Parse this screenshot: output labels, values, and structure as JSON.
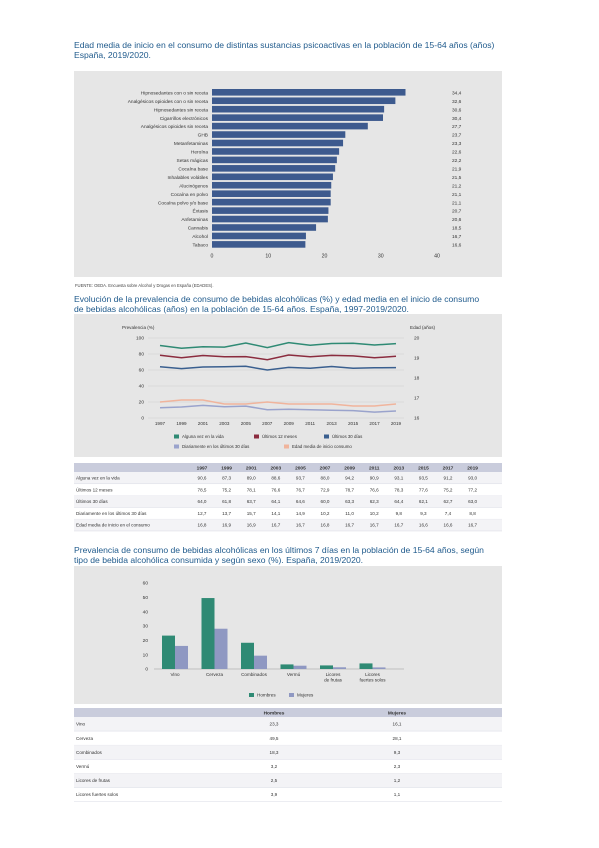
{
  "colors": {
    "title": "#1f5a8c",
    "bar1": "#3d5a8e",
    "green": "#2f8a74",
    "red": "#8b2c3f",
    "blue": "#3a5f8f",
    "lavender": "#9aa3cc",
    "salmon": "#f0b49c",
    "hombres": "#2f8a74",
    "mujeres": "#8f98c2",
    "panel": "#e6e6e6",
    "tableHeader": "#c9ccdc"
  },
  "chart1": {
    "title_line1": "Edad media de inicio en el consumo de distintas sustancias psicoactivas en la población de 15-64 años (años)",
    "title_line2": "España, 2019/2020.",
    "source": "FUENTE: OEDA. Encuesta sobre Alcohol y Drogas en España (EDADES).",
    "chart_data": {
      "type": "bar",
      "orientation": "horizontal",
      "categories": [
        "Hipnosedantes con o sin receta",
        "Analgésicos opioides con o sin receta",
        "Hipnosedantes sin receta",
        "Cigarrillos electrónicos",
        "Analgésicos opioides sin receta",
        "GHB",
        "Metanfetaminas",
        "Heroína",
        "Setas mágicas",
        "Cocaína base",
        "Inhalables volátiles",
        "Alucinógenos",
        "Cocaína en polvo",
        "Cocaína polvo y/o base",
        "Éxtasis",
        "Anfetaminas",
        "Cannabis",
        "Alcohol",
        "Tabaco"
      ],
      "values": [
        34.4,
        32.6,
        30.6,
        30.4,
        27.7,
        23.7,
        23.3,
        22.6,
        22.2,
        21.9,
        21.5,
        21.2,
        21.1,
        21.1,
        20.7,
        20.6,
        18.5,
        16.7,
        16.6
      ],
      "value_labels": [
        "34,4",
        "32,6",
        "30,6",
        "30,4",
        "27,7",
        "23,7",
        "23,3",
        "22,6",
        "22,2",
        "21,9",
        "21,5",
        "21,2",
        "21,1",
        "21,1",
        "20,7",
        "20,6",
        "18,5",
        "16,7",
        "16,6"
      ],
      "xlim": [
        0,
        40
      ],
      "xticks": [
        "0",
        "10",
        "20",
        "30",
        "40"
      ]
    }
  },
  "chart2": {
    "title_line1": "Evolución de la prevalencia de consumo de bebidas alcohólicas (%) y edad media en el inicio de consumo",
    "title_line2": "de bebidas alcohólicas (años) en la población de 15-64 años. España, 1997-2019/2020.",
    "chart_data": {
      "type": "line",
      "x": [
        "1997",
        "1999",
        "2001",
        "2003",
        "2005",
        "2007",
        "2009",
        "2011",
        "2013",
        "2015",
        "2017",
        "2019"
      ],
      "ylabel_left": "Prevalencia (%)",
      "ylabel_right": "Edad (años)",
      "ylim_left": [
        0,
        100
      ],
      "yticks_left": [
        "0",
        "20",
        "40",
        "60",
        "80",
        "100"
      ],
      "ylim_right": [
        16,
        20
      ],
      "yticks_right": [
        "16",
        "17",
        "18",
        "19",
        "20"
      ],
      "series": [
        {
          "name": "Alguna vez en la vida",
          "axis": "left",
          "values": [
            90.6,
            87.3,
            89.0,
            88.6,
            93.7,
            88.0,
            94.2,
            90.9,
            93.1,
            93.5,
            91.2,
            93.0
          ]
        },
        {
          "name": "Últimos 12 meses",
          "axis": "left",
          "values": [
            78.5,
            75.2,
            78.1,
            76.6,
            76.7,
            72.9,
            78.7,
            76.6,
            78.3,
            77.6,
            75.2,
            77.2
          ]
        },
        {
          "name": "Últimos 30 días",
          "axis": "left",
          "values": [
            64.0,
            61.8,
            63.7,
            64.1,
            64.6,
            60.0,
            63.3,
            62.3,
            64.4,
            62.1,
            62.7,
            63.0
          ]
        },
        {
          "name": "Diariamente en los últimos 30 días",
          "axis": "left",
          "values": [
            12.7,
            13.7,
            15.7,
            14.1,
            14.9,
            10.2,
            11.0,
            10.2,
            9.8,
            9.3,
            7.4,
            8.8
          ]
        },
        {
          "name": "Edad media de inicio consumo",
          "axis": "right",
          "values": [
            16.8,
            16.9,
            16.9,
            16.7,
            16.7,
            16.8,
            16.7,
            16.7,
            16.7,
            16.6,
            16.6,
            16.7
          ]
        }
      ]
    },
    "table": {
      "headers": [
        "",
        "1997",
        "1999",
        "2001",
        "2003",
        "2005",
        "2007",
        "2009",
        "2011",
        "2013",
        "2015",
        "2017",
        "2019"
      ],
      "rows": [
        [
          "Alguna vez en la vida",
          "90,6",
          "87,3",
          "89,0",
          "88,6",
          "93,7",
          "88,0",
          "94,2",
          "90,9",
          "93,1",
          "93,5",
          "91,2",
          "93,0"
        ],
        [
          "Últimos 12 meses",
          "78,5",
          "75,2",
          "78,1",
          "76,6",
          "76,7",
          "72,9",
          "78,7",
          "76,6",
          "78,3",
          "77,6",
          "75,2",
          "77,2"
        ],
        [
          "Últimos 30 días",
          "64,0",
          "61,8",
          "63,7",
          "64,1",
          "64,6",
          "60,0",
          "63,3",
          "62,3",
          "64,4",
          "62,1",
          "62,7",
          "63,0"
        ],
        [
          "Diariamente en los últimos 30 días",
          "12,7",
          "13,7",
          "15,7",
          "14,1",
          "14,9",
          "10,2",
          "11,0",
          "10,2",
          "9,8",
          "9,3",
          "7,4",
          "8,8"
        ],
        [
          "Edad media de inicio en el consumo",
          "16,8",
          "16,9",
          "16,9",
          "16,7",
          "16,7",
          "16,8",
          "16,7",
          "16,7",
          "16,7",
          "16,6",
          "16,6",
          "16,7"
        ]
      ]
    }
  },
  "chart3": {
    "title_line1": "Prevalencia de consumo de bebidas alcohólicas en los últimos 7 días en la población de 15-64 años, según",
    "title_line2": "tipo de bebida alcohólica consumida y según sexo (%). España, 2019/2020.",
    "chart_data": {
      "type": "bar",
      "categories": [
        "Vino",
        "Cerveza",
        "Combinados",
        "Vermú",
        "Licores de frutas",
        "Licores fuertes solos"
      ],
      "category_lines": [
        [
          "Vino"
        ],
        [
          "Cerveza"
        ],
        [
          "Combinados"
        ],
        [
          "Vermú"
        ],
        [
          "Licores",
          "de frutas"
        ],
        [
          "Licores",
          "fuertes solos"
        ]
      ],
      "ylim": [
        0,
        60
      ],
      "yticks": [
        "0",
        "10",
        "20",
        "30",
        "40",
        "50",
        "60"
      ],
      "series": [
        {
          "name": "Hombres",
          "values": [
            23.3,
            49.5,
            18.3,
            3.2,
            2.5,
            3.9
          ]
        },
        {
          "name": "Mujeres",
          "values": [
            16.1,
            28.1,
            9.3,
            2.3,
            1.2,
            1.1
          ]
        }
      ]
    },
    "table": {
      "headers": [
        "",
        "Hombres",
        "Mujeres"
      ],
      "rows": [
        [
          "Vino",
          "23,3",
          "16,1"
        ],
        [
          "Cerveza",
          "49,5",
          "28,1"
        ],
        [
          "Combinados",
          "18,3",
          "9,3"
        ],
        [
          "Vermú",
          "3,2",
          "2,3"
        ],
        [
          "Licores de frutas",
          "2,5",
          "1,2"
        ],
        [
          "Licores fuertes solos",
          "3,9",
          "1,1"
        ]
      ]
    }
  }
}
